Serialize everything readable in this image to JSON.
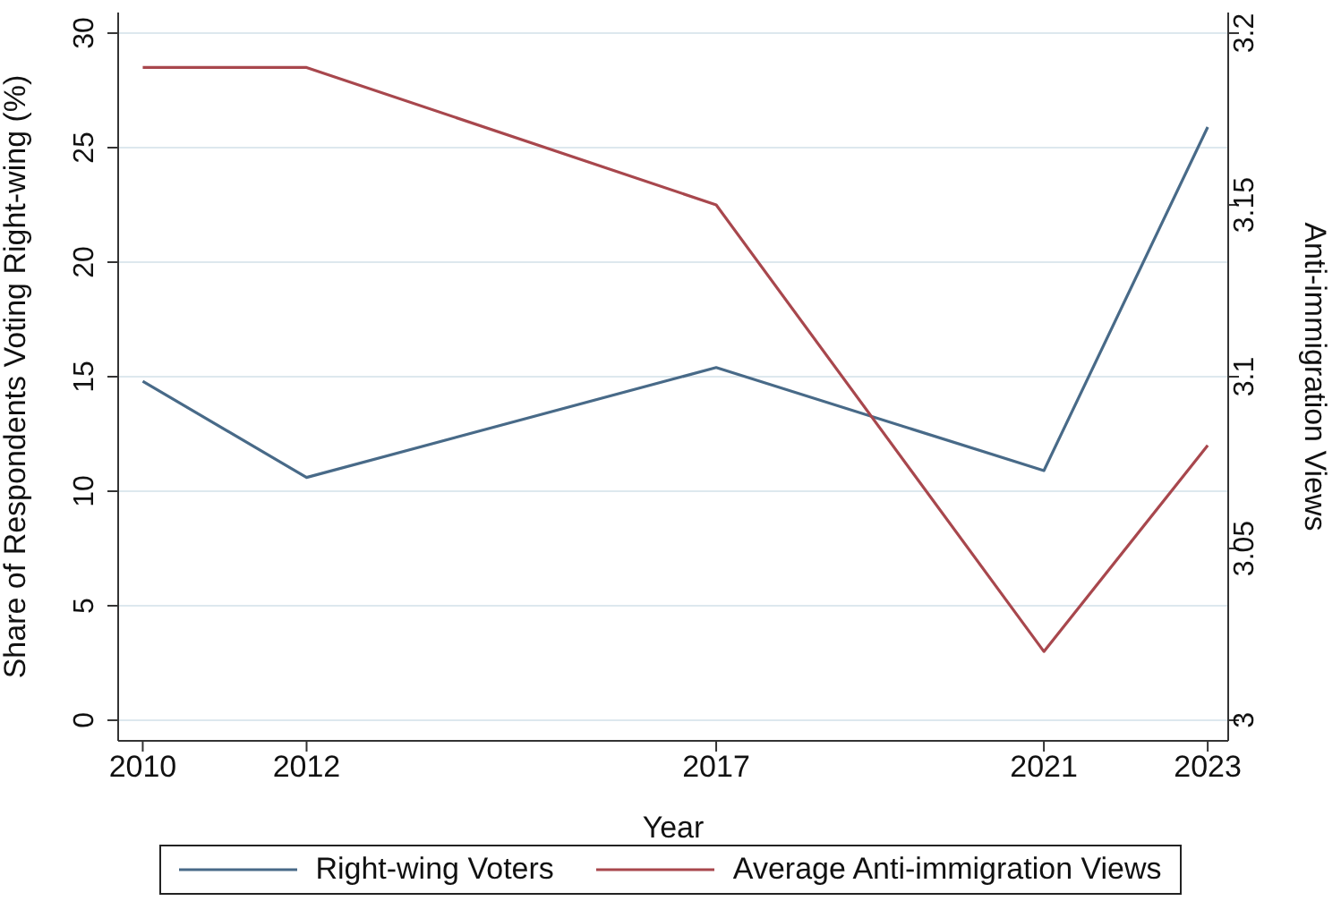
{
  "chart_data": {
    "type": "line",
    "xlabel": "Year",
    "ylabel": "Share of Respondents Voting Right-wing (%)",
    "y2label": "Anti-immigration Views",
    "x": [
      2010,
      2012,
      2017,
      2021,
      2023
    ],
    "series": [
      {
        "name": "Right-wing Voters",
        "color": "#486a88",
        "values": [
          14.8,
          10.6,
          15.4,
          10.9,
          25.9
        ]
      },
      {
        "name": "Average Anti-immigration Views",
        "color": "#a8474d",
        "axis": "y2",
        "values": [
          3.19,
          3.19,
          3.15,
          3.02,
          3.08
        ]
      }
    ],
    "xlim": [
      2009.7,
      2023.25
    ],
    "xticks": [
      2010,
      2012,
      2017,
      2021,
      2023
    ],
    "ylim": [
      -0.9,
      30.9
    ],
    "yticks": [
      0,
      5,
      10,
      15,
      20,
      25,
      30
    ],
    "y2lim": [
      2.994,
      3.206
    ],
    "y2ticks": [
      3,
      3.05,
      3.1,
      3.15,
      3.2
    ],
    "grid": "y",
    "legend": "bottom",
    "marker": "none",
    "line_style": "solid"
  }
}
